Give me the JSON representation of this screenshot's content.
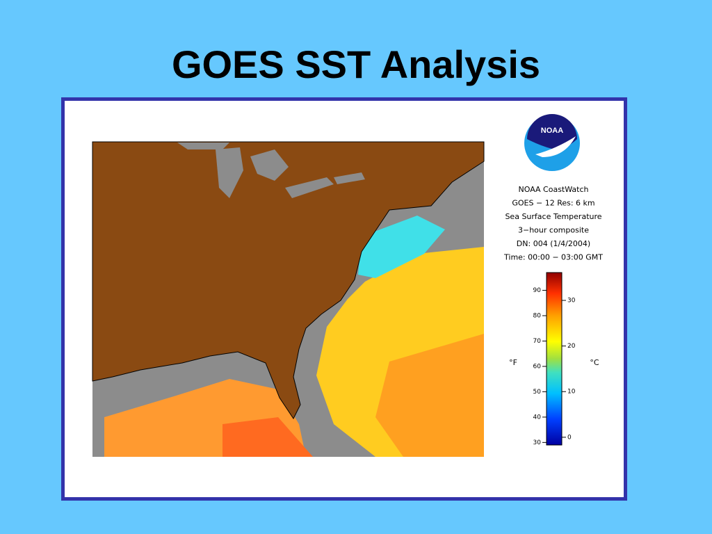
{
  "header": {
    "title": "GOES SST Analysis"
  },
  "logo": {
    "text": "NOAA"
  },
  "caption": {
    "lines": [
      "NOAA CoastWatch",
      "GOES − 12   Res: 6 km",
      "Sea Surface Temperature",
      "3−hour composite",
      "DN: 004   (1/4/2004)",
      "Time: 00:00 − 03:00 GMT"
    ]
  },
  "colorbar": {
    "f_label": "°F",
    "c_label": "°C",
    "flim": [
      29,
      97
    ],
    "fticks": [
      30,
      40,
      50,
      60,
      70,
      80,
      90
    ],
    "clim": [
      -1.7,
      36.1
    ],
    "cticks": [
      0,
      10,
      20,
      30
    ]
  }
}
